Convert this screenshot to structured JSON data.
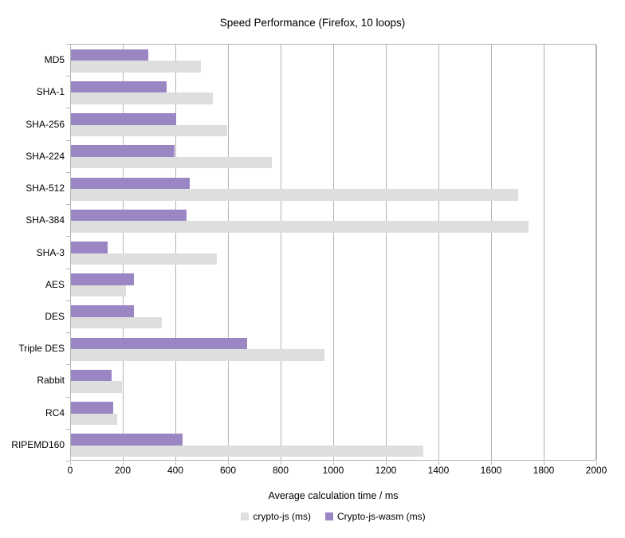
{
  "chart_data": {
    "type": "bar",
    "orientation": "horizontal",
    "title": "Speed Performance (Firefox, 10 loops)",
    "xlabel": "Average calculation time / ms",
    "xlim": [
      0,
      2000
    ],
    "xticks": [
      0,
      200,
      400,
      600,
      800,
      1000,
      1200,
      1400,
      1600,
      1800,
      2000
    ],
    "grid": true,
    "legend_position": "bottom",
    "categories": [
      "MD5",
      "SHA-1",
      "SHA-256",
      "SHA-224",
      "SHA-512",
      "SHA-384",
      "SHA-3",
      "AES",
      "DES",
      "Triple DES",
      "Rabbit",
      "RC4",
      "RIPEMD160"
    ],
    "series": [
      {
        "key": "crypto-js",
        "name": "crypto-js (ms)",
        "color": "#dedede",
        "values": [
          495,
          540,
          595,
          765,
          1700,
          1740,
          555,
          210,
          345,
          965,
          195,
          175,
          1340
        ]
      },
      {
        "key": "crypto-js-wasm",
        "name": "Crypto-js-wasm (ms)",
        "color": "#9a86c2",
        "values": [
          295,
          365,
          400,
          395,
          450,
          440,
          140,
          240,
          240,
          670,
          155,
          160,
          425
        ]
      }
    ],
    "colors": {
      "grid": "#b4b4b4",
      "text": "#000000",
      "background": "#ffffff"
    }
  }
}
